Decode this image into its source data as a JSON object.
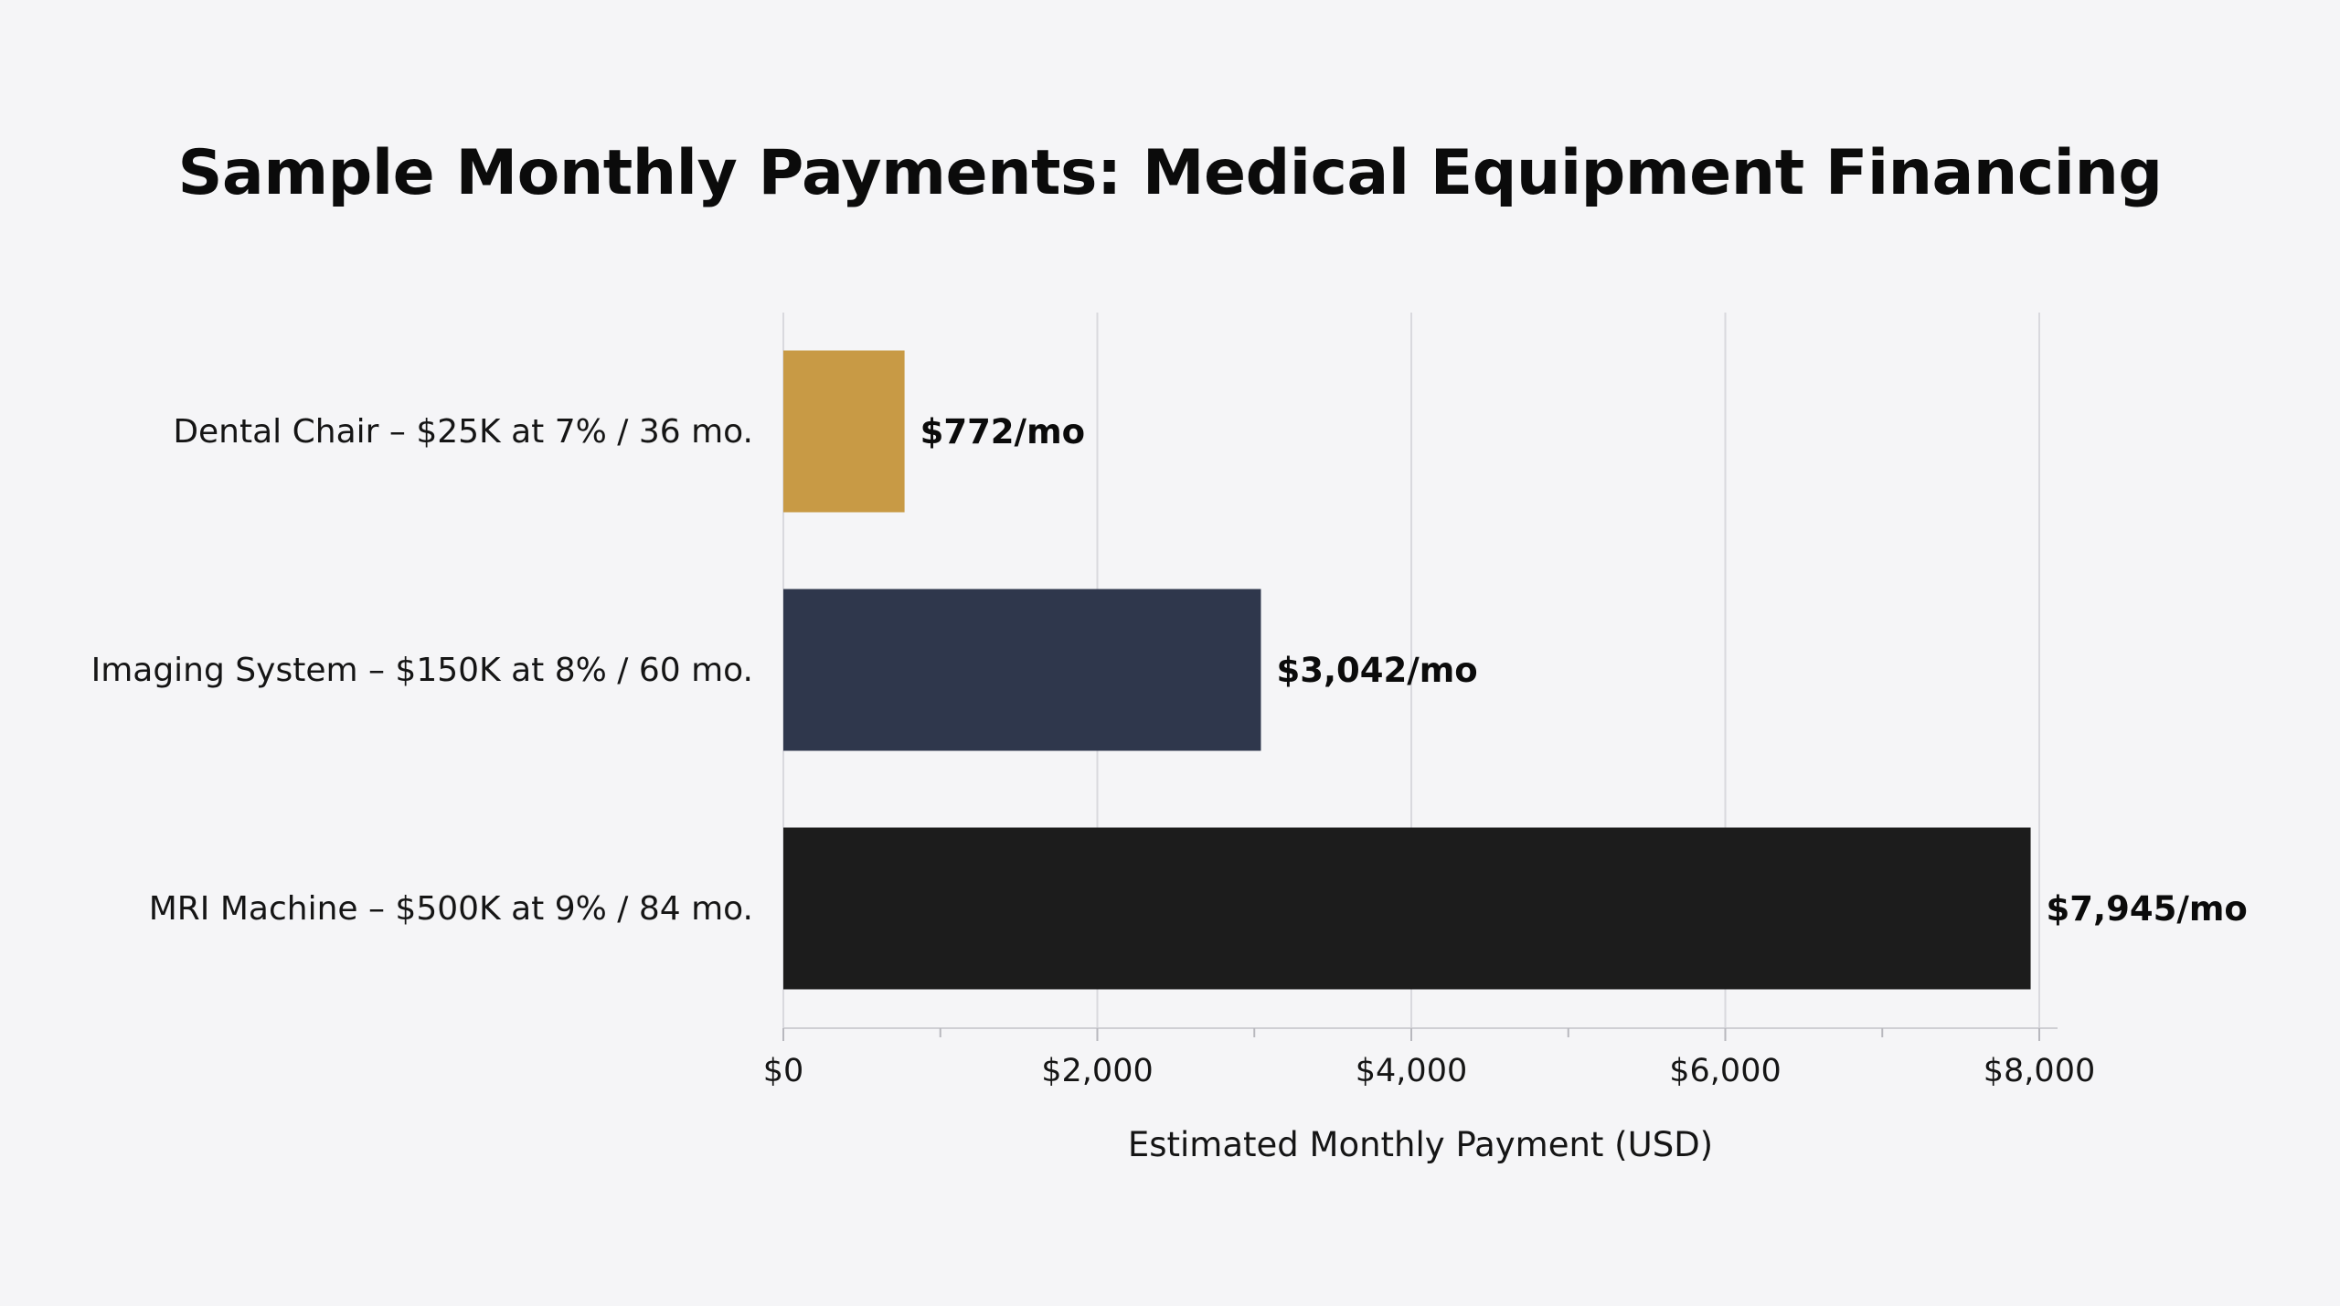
{
  "chart_data": {
    "type": "bar",
    "orientation": "horizontal",
    "title": "Sample Monthly Payments: Medical Equipment Financing",
    "xlabel": "Estimated Monthly Payment (USD)",
    "ylabel": "",
    "xlim": [
      0,
      8000
    ],
    "xticks": [
      0,
      2000,
      4000,
      6000,
      8000
    ],
    "xtick_labels": [
      "$0",
      "$2,000",
      "$4,000",
      "$6,000",
      "$8,000"
    ],
    "grid": "vertical",
    "categories": [
      "Dental Chair – $25K at 7% / 36 mo.",
      "Imaging System – $150K at 8% / 60 mo.",
      "MRI Machine – $500K at 9% / 84 mo."
    ],
    "values": [
      772,
      3042,
      7945
    ],
    "data_labels": [
      "$772/mo",
      "$3,042/mo",
      "$7,945/mo"
    ],
    "colors": [
      "#c89a45",
      "#2f374c",
      "#1c1c1c"
    ]
  }
}
